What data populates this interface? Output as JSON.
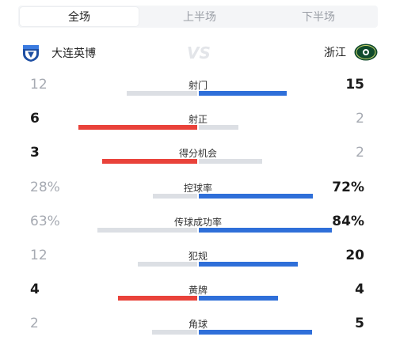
{
  "tabs": [
    "全场",
    "上半场",
    "下半场"
  ],
  "teams": {
    "home": "大连英博",
    "away": "浙江",
    "vs": "VS"
  },
  "colors": {
    "home_lead": "#e9423a",
    "away_lead": "#2f6fd9",
    "neutral": "#dcdfe4"
  },
  "stats": [
    {
      "label": "射门",
      "home": "12",
      "away": "15",
      "home_share": 0.444,
      "away_share": 0.556,
      "leader": "away"
    },
    {
      "label": "射正",
      "home": "6",
      "away": "2",
      "home_share": 0.75,
      "away_share": 0.25,
      "leader": "home"
    },
    {
      "label": "得分机会",
      "home": "3",
      "away": "2",
      "home_share": 0.6,
      "away_share": 0.4,
      "leader": "home"
    },
    {
      "label": "控球率",
      "home": "28%",
      "away": "72%",
      "home_share": 0.28,
      "away_share": 0.72,
      "leader": "away"
    },
    {
      "label": "传球成功率",
      "home": "63%",
      "away": "84%",
      "home_share": 0.63,
      "away_share": 0.84,
      "leader": "away"
    },
    {
      "label": "犯规",
      "home": "12",
      "away": "20",
      "home_share": 0.375,
      "away_share": 0.625,
      "leader": "away"
    },
    {
      "label": "黄牌",
      "home": "4",
      "away": "4",
      "home_share": 0.5,
      "away_share": 0.5,
      "leader": "both"
    },
    {
      "label": "角球",
      "home": "2",
      "away": "5",
      "home_share": 0.286,
      "away_share": 0.714,
      "leader": "away"
    }
  ]
}
